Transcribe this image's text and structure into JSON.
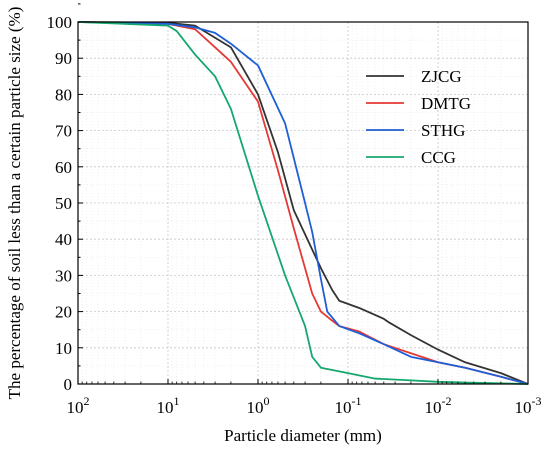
{
  "chart_data": {
    "type": "line",
    "x_scale": "log",
    "x_reversed": true,
    "xlim": [
      0.001,
      100
    ],
    "ylim": [
      0,
      100
    ],
    "xlabel": "Particle diameter (mm)",
    "ylabel": "The percentage of soil less than a certain particle size (%)",
    "grid": true,
    "legend_position": "top-right",
    "x_ticks": [
      {
        "value": 100,
        "base": "10",
        "exp": "2"
      },
      {
        "value": 10,
        "base": "10",
        "exp": "1"
      },
      {
        "value": 1,
        "base": "10",
        "exp": "0"
      },
      {
        "value": 0.1,
        "base": "10",
        "exp": "-1"
      },
      {
        "value": 0.01,
        "base": "10",
        "exp": "-2"
      },
      {
        "value": 0.001,
        "base": "10",
        "exp": "-3"
      }
    ],
    "y_ticks": [
      "0",
      "10",
      "20",
      "30",
      "40",
      "50",
      "60",
      "70",
      "80",
      "90",
      "100"
    ],
    "series": [
      {
        "name": "ZJCG",
        "color": "#333333",
        "points": [
          [
            100,
            100
          ],
          [
            10,
            99.8
          ],
          [
            5,
            99
          ],
          [
            2,
            93
          ],
          [
            1,
            80
          ],
          [
            0.6,
            64
          ],
          [
            0.4,
            48
          ],
          [
            0.2,
            32
          ],
          [
            0.15,
            26
          ],
          [
            0.125,
            23
          ],
          [
            0.075,
            21
          ],
          [
            0.04,
            18
          ],
          [
            0.035,
            17
          ],
          [
            0.02,
            13.5
          ],
          [
            0.01,
            9.5
          ],
          [
            0.005,
            6
          ],
          [
            0.002,
            3
          ],
          [
            0.001,
            0
          ]
        ]
      },
      {
        "name": "DMTG",
        "color": "#e53935",
        "points": [
          [
            100,
            100
          ],
          [
            10,
            99.5
          ],
          [
            5,
            98
          ],
          [
            3,
            93
          ],
          [
            2,
            89
          ],
          [
            1,
            78
          ],
          [
            0.6,
            59
          ],
          [
            0.4,
            43
          ],
          [
            0.25,
            25
          ],
          [
            0.2,
            20
          ],
          [
            0.15,
            17.5
          ],
          [
            0.125,
            16
          ],
          [
            0.075,
            14.5
          ],
          [
            0.04,
            11
          ],
          [
            0.02,
            8.5
          ],
          [
            0.01,
            6
          ],
          [
            0.005,
            4.5
          ],
          [
            0.002,
            2
          ],
          [
            0.001,
            0
          ]
        ]
      },
      {
        "name": "STHG",
        "color": "#1e5fd6",
        "points": [
          [
            100,
            100
          ],
          [
            10,
            99.5
          ],
          [
            5,
            98.5
          ],
          [
            3,
            97
          ],
          [
            2,
            94
          ],
          [
            1,
            88
          ],
          [
            0.5,
            72
          ],
          [
            0.3,
            50
          ],
          [
            0.25,
            42
          ],
          [
            0.2,
            29
          ],
          [
            0.17,
            20
          ],
          [
            0.125,
            16
          ],
          [
            0.075,
            14
          ],
          [
            0.04,
            11
          ],
          [
            0.02,
            7.5
          ],
          [
            0.01,
            6
          ],
          [
            0.005,
            4.5
          ],
          [
            0.002,
            2
          ],
          [
            0.001,
            0
          ]
        ]
      },
      {
        "name": "CCG",
        "color": "#14a86e",
        "points": [
          [
            100,
            100
          ],
          [
            10,
            99
          ],
          [
            8,
            97.5
          ],
          [
            5,
            91
          ],
          [
            3,
            85
          ],
          [
            2,
            76
          ],
          [
            1,
            52
          ],
          [
            0.5,
            30
          ],
          [
            0.3,
            16
          ],
          [
            0.25,
            7.5
          ],
          [
            0.2,
            4.5
          ],
          [
            0.1,
            3
          ],
          [
            0.05,
            1.5
          ],
          [
            0.02,
            1
          ],
          [
            0.01,
            0.6
          ],
          [
            0.005,
            0.4
          ],
          [
            0.001,
            0
          ]
        ]
      }
    ]
  }
}
